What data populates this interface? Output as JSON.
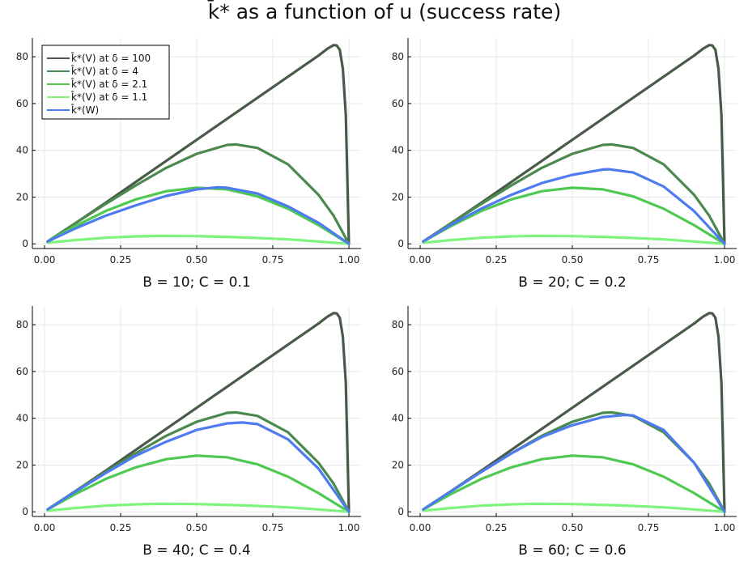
{
  "figure_title": "k̄* as a function of u (success rate)",
  "colors": {
    "delta_100": "#4a5a48",
    "delta_4": "#4b8a4f",
    "delta_2_1": "#4fc952",
    "delta_1_1": "#7ff47d",
    "W": "#4f7bf0"
  },
  "legend": [
    {
      "key": "delta_100",
      "label": "k̄*(V) at δ = 100"
    },
    {
      "key": "delta_4",
      "label": "k̄*(V) at δ = 4"
    },
    {
      "key": "delta_2_1",
      "label": "k̄*(V) at δ = 2.1"
    },
    {
      "key": "delta_1_1",
      "label": "k̄*(V) at δ = 1.1"
    },
    {
      "key": "W",
      "label": "k̄*(W)"
    }
  ],
  "chart_data": [
    {
      "type": "line",
      "xlabel": "B = 10; C = 0.1",
      "xlim": [
        0,
        1
      ],
      "ylim": [
        -2,
        88
      ],
      "xticks": [
        0.0,
        0.25,
        0.5,
        0.75,
        1.0
      ],
      "xtick_labels": [
        "0.00",
        "0.25",
        "0.50",
        "0.75",
        "1.00"
      ],
      "yticks": [
        0,
        20,
        40,
        60,
        80
      ],
      "ytick_labels": [
        "0",
        "20",
        "40",
        "60",
        "80"
      ],
      "grid": true,
      "legend_position": "top-left",
      "series": [
        {
          "key": "delta_100",
          "x": [
            0.01,
            0.1,
            0.2,
            0.3,
            0.4,
            0.5,
            0.6,
            0.7,
            0.8,
            0.9,
            0.93,
            0.95,
            0.96,
            0.97,
            0.98,
            0.99,
            1.0
          ],
          "y": [
            1,
            8.7,
            17.5,
            26.5,
            35.5,
            44.5,
            53.5,
            62.5,
            71.5,
            80.5,
            83.5,
            85,
            84.8,
            83,
            75,
            55,
            0
          ]
        },
        {
          "key": "delta_4",
          "x": [
            0.01,
            0.1,
            0.2,
            0.3,
            0.4,
            0.5,
            0.6,
            0.63,
            0.7,
            0.8,
            0.9,
            0.95,
            1.0
          ],
          "y": [
            1,
            8.7,
            17,
            25,
            32.5,
            38.5,
            42.3,
            42.5,
            41,
            34,
            21,
            12,
            0
          ]
        },
        {
          "key": "delta_2_1",
          "x": [
            0.01,
            0.1,
            0.2,
            0.3,
            0.4,
            0.5,
            0.6,
            0.7,
            0.8,
            0.9,
            1.0
          ],
          "y": [
            1,
            7.5,
            14,
            19,
            22.5,
            24,
            23.3,
            20.3,
            15,
            8,
            0
          ]
        },
        {
          "key": "delta_1_1",
          "x": [
            0.01,
            0.1,
            0.2,
            0.3,
            0.38,
            0.5,
            0.6,
            0.7,
            0.8,
            0.9,
            1.0
          ],
          "y": [
            0.5,
            1.6,
            2.6,
            3.2,
            3.4,
            3.3,
            3.0,
            2.5,
            1.9,
            1.0,
            0
          ]
        },
        {
          "key": "W",
          "x": [
            0.01,
            0.1,
            0.2,
            0.3,
            0.4,
            0.5,
            0.57,
            0.6,
            0.7,
            0.8,
            0.9,
            1.0
          ],
          "y": [
            1,
            6.5,
            12,
            16.5,
            20.5,
            23.3,
            24.2,
            24,
            21.5,
            16,
            9,
            0
          ]
        }
      ]
    },
    {
      "type": "line",
      "xlabel": "B = 20; C = 0.2",
      "xlim": [
        0,
        1
      ],
      "ylim": [
        -2,
        88
      ],
      "xticks": [
        0.0,
        0.25,
        0.5,
        0.75,
        1.0
      ],
      "xtick_labels": [
        "0.00",
        "0.25",
        "0.50",
        "0.75",
        "1.00"
      ],
      "yticks": [
        0,
        20,
        40,
        60,
        80
      ],
      "ytick_labels": [
        "0",
        "20",
        "40",
        "60",
        "80"
      ],
      "grid": true,
      "series": [
        {
          "key": "delta_100",
          "x": [
            0.01,
            0.1,
            0.2,
            0.3,
            0.4,
            0.5,
            0.6,
            0.7,
            0.8,
            0.9,
            0.93,
            0.95,
            0.96,
            0.97,
            0.98,
            0.99,
            1.0
          ],
          "y": [
            1,
            8.7,
            17.5,
            26.5,
            35.5,
            44.5,
            53.5,
            62.5,
            71.5,
            80.5,
            83.5,
            85,
            84.8,
            83,
            75,
            55,
            0
          ]
        },
        {
          "key": "delta_4",
          "x": [
            0.01,
            0.1,
            0.2,
            0.3,
            0.4,
            0.5,
            0.6,
            0.63,
            0.7,
            0.8,
            0.9,
            0.95,
            1.0
          ],
          "y": [
            1,
            8.7,
            17,
            25,
            32.5,
            38.5,
            42.3,
            42.5,
            41,
            34,
            21,
            12,
            0
          ]
        },
        {
          "key": "delta_2_1",
          "x": [
            0.01,
            0.1,
            0.2,
            0.3,
            0.4,
            0.5,
            0.6,
            0.7,
            0.8,
            0.9,
            1.0
          ],
          "y": [
            1,
            7.5,
            14,
            19,
            22.5,
            24,
            23.3,
            20.3,
            15,
            8,
            0
          ]
        },
        {
          "key": "delta_1_1",
          "x": [
            0.01,
            0.1,
            0.2,
            0.3,
            0.38,
            0.5,
            0.6,
            0.7,
            0.8,
            0.9,
            1.0
          ],
          "y": [
            0.5,
            1.6,
            2.6,
            3.2,
            3.4,
            3.3,
            3.0,
            2.5,
            1.9,
            1.0,
            0
          ]
        },
        {
          "key": "W",
          "x": [
            0.01,
            0.1,
            0.2,
            0.3,
            0.4,
            0.5,
            0.6,
            0.62,
            0.7,
            0.8,
            0.9,
            1.0
          ],
          "y": [
            1,
            8,
            15,
            21,
            26,
            29.5,
            31.8,
            31.9,
            30.5,
            24.5,
            14,
            0
          ]
        }
      ]
    },
    {
      "type": "line",
      "xlabel": "B = 40; C = 0.4",
      "xlim": [
        0,
        1
      ],
      "ylim": [
        -2,
        88
      ],
      "xticks": [
        0.0,
        0.25,
        0.5,
        0.75,
        1.0
      ],
      "xtick_labels": [
        "0.00",
        "0.25",
        "0.50",
        "0.75",
        "1.00"
      ],
      "yticks": [
        0,
        20,
        40,
        60,
        80
      ],
      "ytick_labels": [
        "0",
        "20",
        "40",
        "60",
        "80"
      ],
      "grid": true,
      "series": [
        {
          "key": "delta_100",
          "x": [
            0.01,
            0.1,
            0.2,
            0.3,
            0.4,
            0.5,
            0.6,
            0.7,
            0.8,
            0.9,
            0.93,
            0.95,
            0.96,
            0.97,
            0.98,
            0.99,
            1.0
          ],
          "y": [
            1,
            8.7,
            17.5,
            26.5,
            35.5,
            44.5,
            53.5,
            62.5,
            71.5,
            80.5,
            83.5,
            85,
            84.8,
            83,
            75,
            55,
            0
          ]
        },
        {
          "key": "delta_4",
          "x": [
            0.01,
            0.1,
            0.2,
            0.3,
            0.4,
            0.5,
            0.6,
            0.63,
            0.7,
            0.8,
            0.9,
            0.95,
            1.0
          ],
          "y": [
            1,
            8.7,
            17,
            25,
            32.5,
            38.5,
            42.3,
            42.5,
            41,
            34,
            21,
            12,
            0
          ]
        },
        {
          "key": "delta_2_1",
          "x": [
            0.01,
            0.1,
            0.2,
            0.3,
            0.4,
            0.5,
            0.6,
            0.7,
            0.8,
            0.9,
            1.0
          ],
          "y": [
            1,
            7.5,
            14,
            19,
            22.5,
            24,
            23.3,
            20.3,
            15,
            8,
            0
          ]
        },
        {
          "key": "delta_1_1",
          "x": [
            0.01,
            0.1,
            0.2,
            0.3,
            0.38,
            0.5,
            0.6,
            0.7,
            0.8,
            0.9,
            1.0
          ],
          "y": [
            0.5,
            1.6,
            2.6,
            3.2,
            3.4,
            3.3,
            3.0,
            2.5,
            1.9,
            1.0,
            0
          ]
        },
        {
          "key": "W",
          "x": [
            0.01,
            0.1,
            0.2,
            0.3,
            0.4,
            0.5,
            0.6,
            0.65,
            0.7,
            0.8,
            0.9,
            1.0
          ],
          "y": [
            1,
            8.5,
            16.5,
            24,
            30,
            35,
            37.8,
            38.2,
            37.5,
            31,
            18.5,
            0
          ]
        }
      ]
    },
    {
      "type": "line",
      "xlabel": "B = 60; C = 0.6",
      "xlim": [
        0,
        1
      ],
      "ylim": [
        -2,
        88
      ],
      "xticks": [
        0.0,
        0.25,
        0.5,
        0.75,
        1.0
      ],
      "xtick_labels": [
        "0.00",
        "0.25",
        "0.50",
        "0.75",
        "1.00"
      ],
      "yticks": [
        0,
        20,
        40,
        60,
        80
      ],
      "ytick_labels": [
        "0",
        "20",
        "40",
        "60",
        "80"
      ],
      "grid": true,
      "series": [
        {
          "key": "delta_100",
          "x": [
            0.01,
            0.1,
            0.2,
            0.3,
            0.4,
            0.5,
            0.6,
            0.7,
            0.8,
            0.9,
            0.93,
            0.95,
            0.96,
            0.97,
            0.98,
            0.99,
            1.0
          ],
          "y": [
            1,
            8.7,
            17.5,
            26.5,
            35.5,
            44.5,
            53.5,
            62.5,
            71.5,
            80.5,
            83.5,
            85,
            84.8,
            83,
            75,
            55,
            0
          ]
        },
        {
          "key": "delta_4",
          "x": [
            0.01,
            0.1,
            0.2,
            0.3,
            0.4,
            0.5,
            0.6,
            0.63,
            0.7,
            0.8,
            0.9,
            0.95,
            1.0
          ],
          "y": [
            1,
            8.7,
            17,
            25,
            32.5,
            38.5,
            42.3,
            42.5,
            41,
            34,
            21,
            12,
            0
          ]
        },
        {
          "key": "delta_2_1",
          "x": [
            0.01,
            0.1,
            0.2,
            0.3,
            0.4,
            0.5,
            0.6,
            0.7,
            0.8,
            0.9,
            1.0
          ],
          "y": [
            1,
            7.5,
            14,
            19,
            22.5,
            24,
            23.3,
            20.3,
            15,
            8,
            0
          ]
        },
        {
          "key": "delta_1_1",
          "x": [
            0.01,
            0.1,
            0.2,
            0.3,
            0.38,
            0.5,
            0.6,
            0.7,
            0.8,
            0.9,
            1.0
          ],
          "y": [
            0.5,
            1.6,
            2.6,
            3.2,
            3.4,
            3.3,
            3.0,
            2.5,
            1.9,
            1.0,
            0
          ]
        },
        {
          "key": "W",
          "x": [
            0.01,
            0.1,
            0.2,
            0.3,
            0.4,
            0.5,
            0.6,
            0.67,
            0.7,
            0.8,
            0.9,
            1.0
          ],
          "y": [
            1,
            8.6,
            17,
            25,
            32,
            37,
            40.5,
            41.4,
            41.2,
            35,
            21,
            0
          ]
        }
      ]
    }
  ]
}
